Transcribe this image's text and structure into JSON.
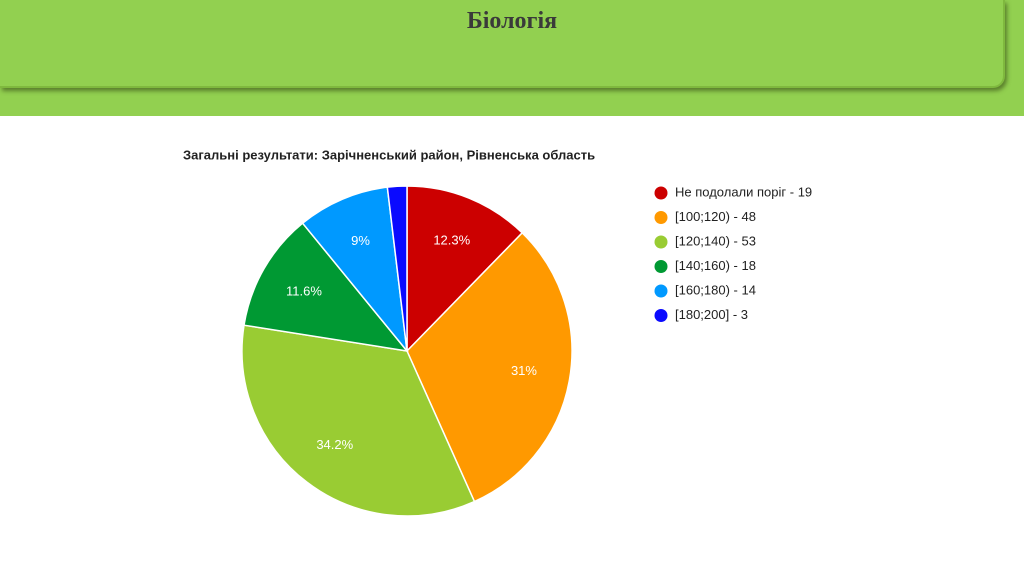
{
  "header": {
    "title": "Біологія"
  },
  "chart_data": {
    "type": "pie",
    "title": "Загальні результати: Зарічненський район, Рівненська область",
    "categories": [
      "Не подолали поріг - 19",
      "[100;120) - 48",
      "[120;140) - 53",
      "[140;160) - 18",
      "[160;180) - 14",
      "[180;200] - 3"
    ],
    "values": [
      12.3,
      31,
      34.2,
      11.6,
      9,
      1.9
    ],
    "value_labels": [
      "12.3%",
      "31%",
      "34.2%",
      "11.6%",
      "9%",
      null
    ],
    "colors": [
      "#cc0000",
      "#ff9900",
      "#99cc33",
      "#009933",
      "#0099ff",
      "#0a0aff"
    ],
    "legend": "right"
  }
}
